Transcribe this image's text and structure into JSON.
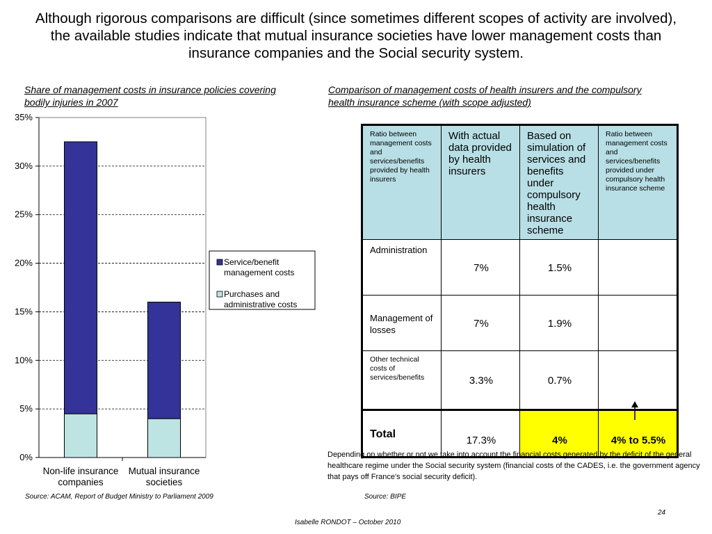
{
  "slide": {
    "heading": "Although rigorous comparisons are difficult (since sometimes different scopes of activity are involved), the available studies indicate that mutual insurance societies have lower management costs than insurance companies and the Social security system.",
    "left_subtitle": "Share of management costs in insurance policies covering bodily injuries in 2007",
    "right_subtitle": "Comparison of management costs of health insurers and the compulsory health insurance scheme (with scope adjusted)",
    "note": "Depending on whether or not we take into account the financial costs generated by the deficit of the general healthcare regime under the Social security system (financial costs of the CADES, i.e. the government agency that pays off France's social security deficit).",
    "source_left": "Source: ACAM,  Report of Budget Ministry to Parliament 2009",
    "source_right": "Source: BIPE",
    "page_number": "24",
    "author": "Isabelle RONDOT – October 2010"
  },
  "chart_data": [
    {
      "type": "bar",
      "stacked": true,
      "categories": [
        [
          "Non-life insurance",
          "companies"
        ],
        [
          "Mutual insurance",
          "societies"
        ]
      ],
      "series": [
        {
          "name": "Purchases and administrative costs",
          "values": [
            4.5,
            4.0
          ],
          "color": "#bee3e3"
        },
        {
          "name": "Service/benefit management costs",
          "values": [
            28.0,
            12.0
          ],
          "color": "#333399"
        }
      ],
      "legend_order": [
        1,
        0
      ],
      "legend_labels": [
        [
          "Service/benefit",
          "management costs"
        ],
        [
          "Purchases and",
          "administrative costs"
        ]
      ],
      "ylim": [
        0,
        35
      ],
      "yticks": [
        0,
        5,
        10,
        15,
        20,
        25,
        30,
        35
      ],
      "ytick_labels": [
        "0%",
        "5%",
        "10%",
        "15%",
        "20%",
        "25%",
        "30%",
        "35%"
      ],
      "grid": "horizontal dashed",
      "legend": "right"
    },
    {
      "type": "table",
      "header": [
        "Ratio between management costs and services/benefits provided by health insurers",
        "With actual data provided by health insurers",
        "Based on simulation of services and benefits under compulsory health insurance scheme",
        "Ratio between management costs and services/benefits provided under compulsory health insurance scheme"
      ],
      "rows": [
        {
          "label": "Administration",
          "insurers": "7%",
          "simulation": "1.5%",
          "scheme": ""
        },
        {
          "label": "Management of losses",
          "insurers": "7%",
          "simulation": "1.9%",
          "scheme": ""
        },
        {
          "label": "Other technical costs of services/benefits",
          "insurers": "3.3%",
          "simulation": "0.7%",
          "scheme": ""
        },
        {
          "label": "Total",
          "insurers": "17.3%",
          "simulation": "4%",
          "scheme": "4% to 5.5%"
        }
      ],
      "highlight_color": "#ffff00",
      "header_color": "#b8dfe5"
    }
  ]
}
